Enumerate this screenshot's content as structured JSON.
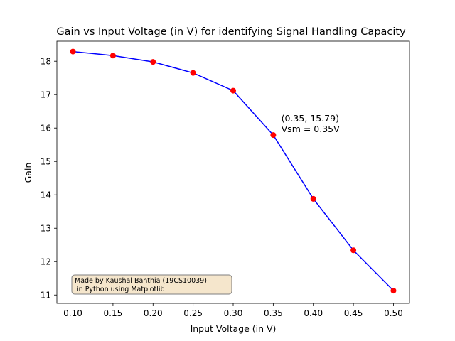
{
  "chart_data": {
    "type": "line",
    "title": "Gain vs Input Voltage (in V) for identifying Signal Handling Capacity",
    "xlabel": "Input Voltage (in V)",
    "ylabel": "Gain",
    "x": [
      0.1,
      0.15,
      0.2,
      0.25,
      0.3,
      0.35,
      0.4,
      0.45,
      0.5
    ],
    "series": [
      {
        "values": [
          18.29,
          18.17,
          17.98,
          17.65,
          17.12,
          15.79,
          13.88,
          12.34,
          11.13
        ],
        "line_color": "#0000ff",
        "marker_color": "#ff0000"
      }
    ],
    "xlim": [
      0.08,
      0.52
    ],
    "ylim": [
      10.75,
      18.6
    ],
    "xticks": [
      0.1,
      0.15,
      0.2,
      0.25,
      0.3,
      0.35,
      0.4,
      0.45,
      0.5
    ],
    "xtick_labels": [
      "0.10",
      "0.15",
      "0.20",
      "0.25",
      "0.30",
      "0.35",
      "0.40",
      "0.45",
      "0.50"
    ],
    "yticks": [
      11,
      12,
      13,
      14,
      15,
      16,
      17,
      18
    ],
    "ytick_labels": [
      "11",
      "12",
      "13",
      "14",
      "15",
      "16",
      "17",
      "18"
    ],
    "annotation": {
      "lines": [
        "(0.35, 15.79)",
        "Vsm = 0.35V"
      ],
      "x": 0.36,
      "y": 16.2
    },
    "credit_box": {
      "lines": [
        "Made by Kaushal Banthia (19CS10039)",
        " in Python using Matplotlib"
      ],
      "background": "#f5e6cc",
      "border": "#7f7f7f"
    },
    "grid": false,
    "legend": "none"
  }
}
